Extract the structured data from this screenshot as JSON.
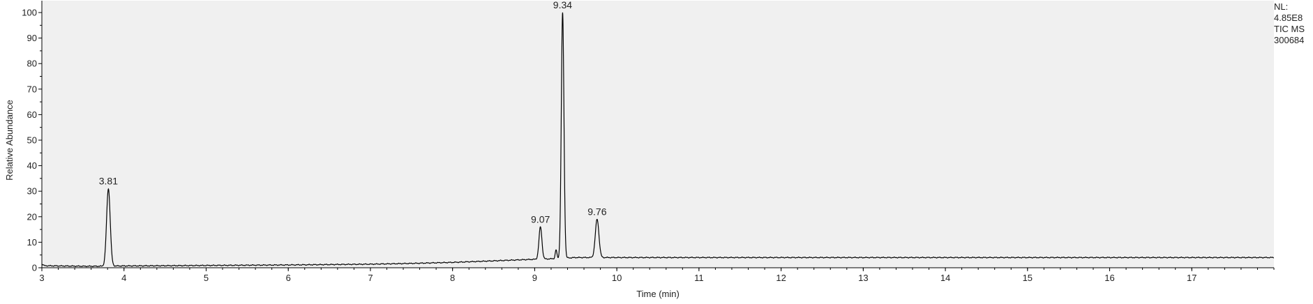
{
  "chart_data": {
    "type": "line",
    "title": "",
    "xlabel": "Time (min)",
    "ylabel": "Relative Abundance",
    "xlim": [
      3.0,
      18.0
    ],
    "ylim": [
      0,
      100
    ],
    "xticks": [
      3,
      4,
      5,
      6,
      7,
      8,
      9,
      10,
      11,
      12,
      13,
      14,
      15,
      16,
      17
    ],
    "yticks": [
      0,
      10,
      20,
      30,
      40,
      50,
      60,
      70,
      80,
      90,
      100
    ],
    "grid": false,
    "plot_background": "#f0f0f0",
    "line_color": "#000000",
    "baseline": [
      [
        3.0,
        1.5
      ],
      [
        3.03,
        0.8
      ],
      [
        3.5,
        0.6
      ],
      [
        3.76,
        0.6
      ],
      [
        3.86,
        0.7
      ],
      [
        4.5,
        0.8
      ],
      [
        5.0,
        0.9
      ],
      [
        6.0,
        1.1
      ],
      [
        7.0,
        1.4
      ],
      [
        7.5,
        1.7
      ],
      [
        8.0,
        2.1
      ],
      [
        8.5,
        2.7
      ],
      [
        8.9,
        3.2
      ],
      [
        9.2,
        3.5
      ],
      [
        9.5,
        4.0
      ],
      [
        10.0,
        4.0
      ],
      [
        12.0,
        4.0
      ],
      [
        15.0,
        4.0
      ],
      [
        18.0,
        4.0
      ]
    ],
    "peaks": [
      {
        "rt": 3.81,
        "height": 31,
        "width": 0.022,
        "label": "3.81"
      },
      {
        "rt": 9.07,
        "height": 16,
        "width": 0.018,
        "label": "9.07"
      },
      {
        "rt": 9.26,
        "height": 7,
        "width": 0.01,
        "label": ""
      },
      {
        "rt": 9.34,
        "height": 100,
        "width": 0.016,
        "label": "9.34"
      },
      {
        "rt": 9.76,
        "height": 19,
        "width": 0.022,
        "label": "9.76"
      }
    ]
  },
  "info": {
    "nl_label": "NL:",
    "nl_value": "4.85E8",
    "scan_type": "TIC  MS",
    "sample_id": "300684"
  }
}
